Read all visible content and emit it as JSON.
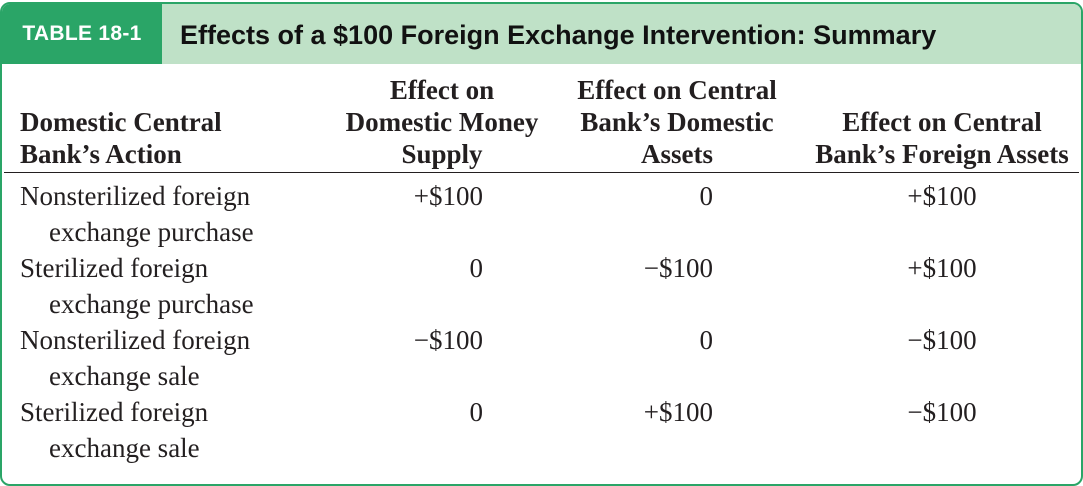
{
  "table": {
    "tag": "TABLE 18-1",
    "title": "Effects of a $100 Foreign Exchange Intervention: Summary",
    "headers": {
      "action": [
        "Domestic Central",
        "Bank’s Action"
      ],
      "money": [
        "Effect on",
        "Domestic Money",
        "Supply"
      ],
      "domestic_assets": [
        "Effect on Central",
        "Bank’s Domestic",
        "Assets"
      ],
      "foreign_assets": [
        "Effect on Central",
        "Bank’s Foreign Assets"
      ]
    },
    "rows": [
      {
        "action": [
          "Nonsterilized foreign",
          "exchange purchase"
        ],
        "money": "+$100",
        "domestic_assets": "0",
        "foreign_assets": "+$100"
      },
      {
        "action": [
          "Sterilized foreign",
          "exchange purchase"
        ],
        "money": "0",
        "domestic_assets": "−$100",
        "foreign_assets": "+$100"
      },
      {
        "action": [
          "Nonsterilized foreign",
          "exchange sale"
        ],
        "money": "−$100",
        "domestic_assets": "0",
        "foreign_assets": "−$100"
      },
      {
        "action": [
          "Sterilized foreign",
          "exchange sale"
        ],
        "money": "0",
        "domestic_assets": "+$100",
        "foreign_assets": "−$100"
      }
    ]
  },
  "colors": {
    "accent": "#2aa567",
    "header_band": "#bfe1c7",
    "text": "#231f20"
  }
}
